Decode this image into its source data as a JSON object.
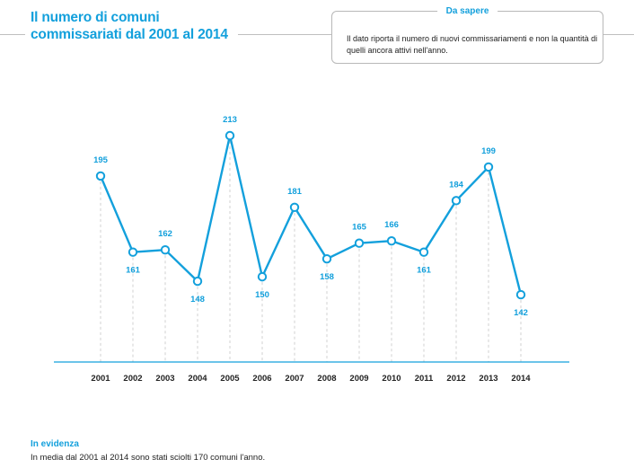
{
  "header": {
    "title_line1": "Il numero di comuni",
    "title_line2": "commissariati dal 2001 al 2014"
  },
  "info": {
    "title": "Da sapere",
    "text": "Il dato riporta il numero di nuovi commissariamenti e non la quantità di quelli ancora attivi nell'anno."
  },
  "chart_data": {
    "type": "line",
    "title": "Il numero di comuni commissariati dal 2001 al 2014",
    "xlabel": "",
    "ylabel": "",
    "x": [
      "2001",
      "2002",
      "2003",
      "2004",
      "2005",
      "2006",
      "2007",
      "2008",
      "2009",
      "2010",
      "2011",
      "2012",
      "2013",
      "2014"
    ],
    "series": [
      {
        "values": [
          195,
          161,
          162,
          148,
          213,
          150,
          181,
          158,
          165,
          166,
          161,
          184,
          199,
          142
        ]
      }
    ],
    "label_position": [
      "above",
      "below",
      "above",
      "below",
      "above",
      "below",
      "above",
      "below",
      "above",
      "above",
      "below",
      "above",
      "above",
      "below"
    ],
    "ylim": [
      130,
      213
    ],
    "grid": "vertical dashed drop lines",
    "legend": "none",
    "colors": {
      "line": "#13a0dc",
      "labels": "#13a0dc",
      "gridline": "#d0d0d0"
    }
  },
  "highlight": {
    "title": "In evidenza",
    "text": "In media dal 2001 al 2014 sono stati sciolti 170 comuni l'anno."
  }
}
